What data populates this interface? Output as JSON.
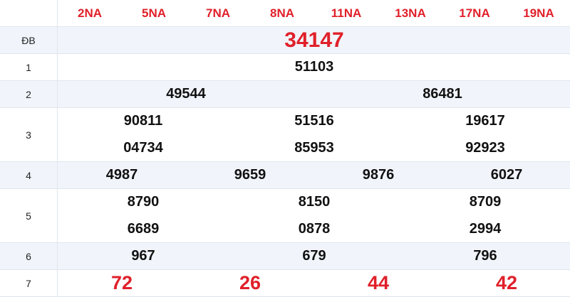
{
  "header": [
    "2NA",
    "5NA",
    "7NA",
    "8NA",
    "11NA",
    "13NA",
    "17NA",
    "19NA"
  ],
  "prizes": [
    {
      "label": "ĐB",
      "cols": [
        [
          "34147"
        ]
      ]
    },
    {
      "label": "1",
      "cols": [
        [
          "51103"
        ]
      ]
    },
    {
      "label": "2",
      "cols": [
        [
          "49544"
        ],
        [
          "86481"
        ]
      ]
    },
    {
      "label": "3",
      "cols": [
        [
          "90811",
          "04734"
        ],
        [
          "51516",
          "85953"
        ],
        [
          "19617",
          "92923"
        ]
      ]
    },
    {
      "label": "4",
      "cols": [
        [
          "4987"
        ],
        [
          "9659"
        ],
        [
          "9876"
        ],
        [
          "6027"
        ]
      ]
    },
    {
      "label": "5",
      "cols": [
        [
          "8790",
          "6689"
        ],
        [
          "8150",
          "0878"
        ],
        [
          "8709",
          "2994"
        ]
      ]
    },
    {
      "label": "6",
      "cols": [
        [
          "967"
        ],
        [
          "679"
        ],
        [
          "796"
        ]
      ]
    },
    {
      "label": "7",
      "cols": [
        [
          "72"
        ],
        [
          "26"
        ],
        [
          "44"
        ],
        [
          "42"
        ]
      ]
    }
  ],
  "colors": {
    "accent": "#e0202a",
    "alt_row": "#f1f5fb"
  }
}
